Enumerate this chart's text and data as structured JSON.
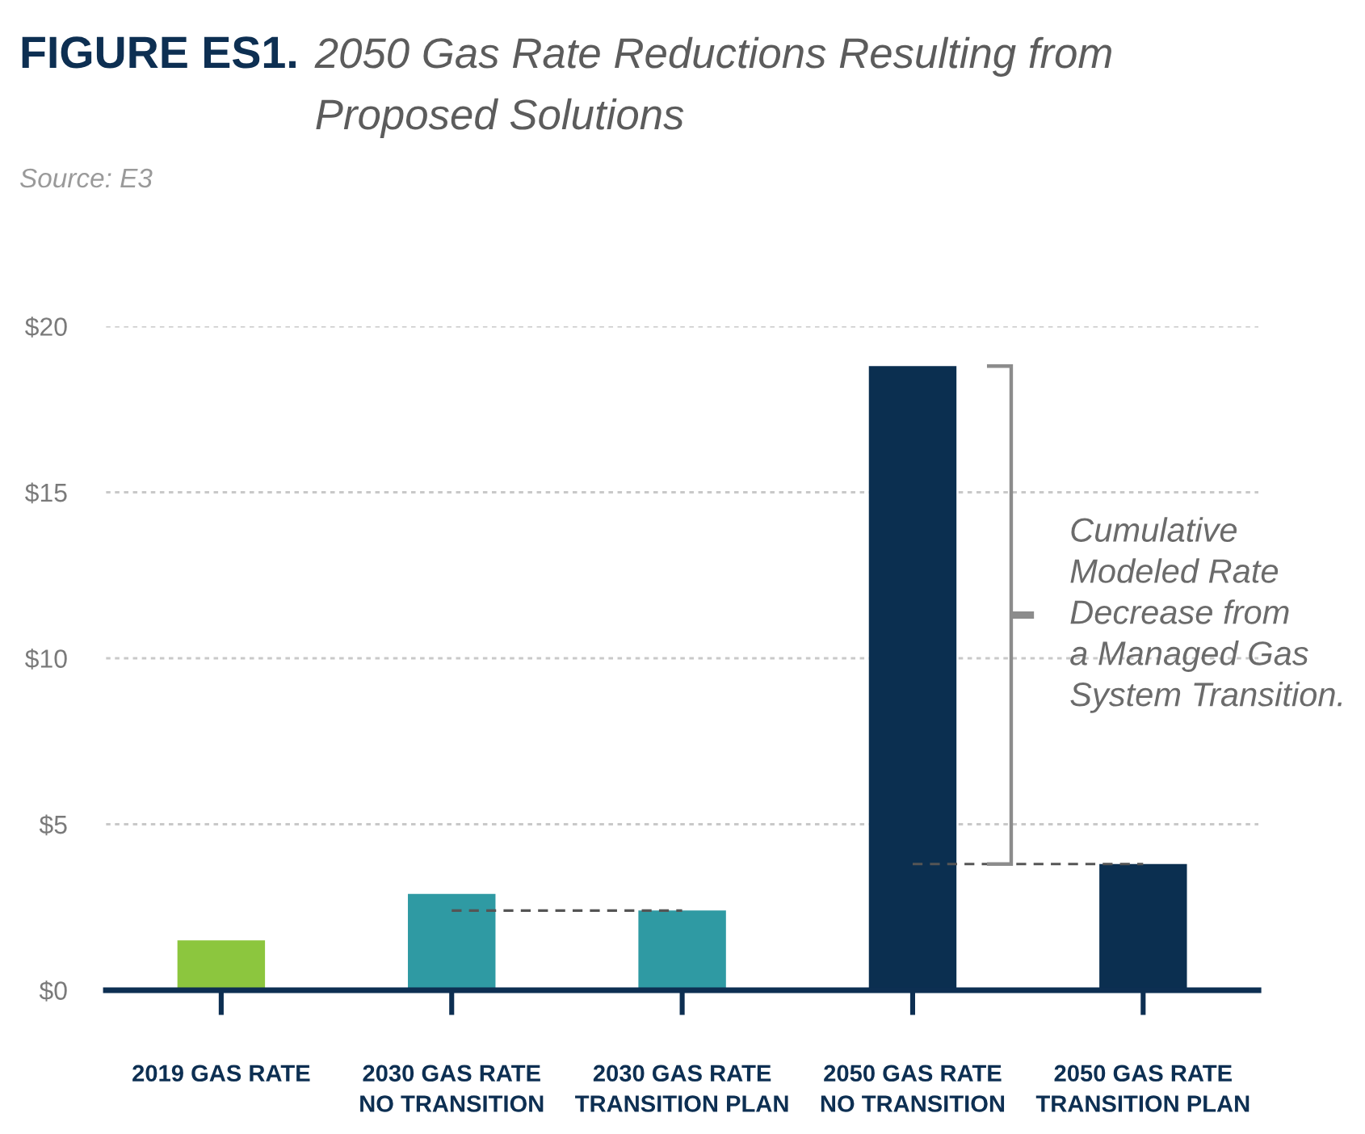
{
  "chart_data": {
    "type": "bar",
    "title": "FIGURE ES1.",
    "subtitle": "2050 Gas Rate Reductions Resulting from\nProposed Solutions",
    "annotations": [
      "Source: E3",
      "Cumulative\nModeled Rate\nDecrease from\na Managed Gas\nSystem Transition."
    ],
    "categories": [
      "2019 GAS RATE",
      "2030 GAS RATE\nNO TRANSITION",
      "2030 GAS RATE\nTRANSITION PLAN",
      "2050 GAS RATE\nNO TRANSITION",
      "2050 GAS RATE\nTRANSITION PLAN"
    ],
    "series": [
      {
        "colors": [
          "#8cc63e",
          "#2f9aa3",
          "#2f9aa3",
          "#0b2f50",
          "#0b2f50"
        ],
        "values": [
          1.5,
          2.9,
          2.4,
          18.8,
          3.8
        ]
      },
      {
        "type": "line",
        "color": "#555555",
        "line_style": "dashed",
        "values": [
          null,
          2.4,
          2.4,
          null,
          null
        ]
      },
      {
        "type": "line",
        "color": "#555555",
        "line_style": "dashed",
        "values": [
          null,
          null,
          null,
          3.8,
          3.8
        ]
      }
    ],
    "ylim": [
      0,
      20
    ],
    "yticks": [
      {
        "value": 0,
        "label": "$0"
      },
      {
        "value": 5,
        "label": "$5"
      },
      {
        "value": 10,
        "label": "$10"
      },
      {
        "value": 15,
        "label": "$15"
      },
      {
        "value": 20,
        "label": "$20"
      }
    ],
    "grid": "y"
  }
}
